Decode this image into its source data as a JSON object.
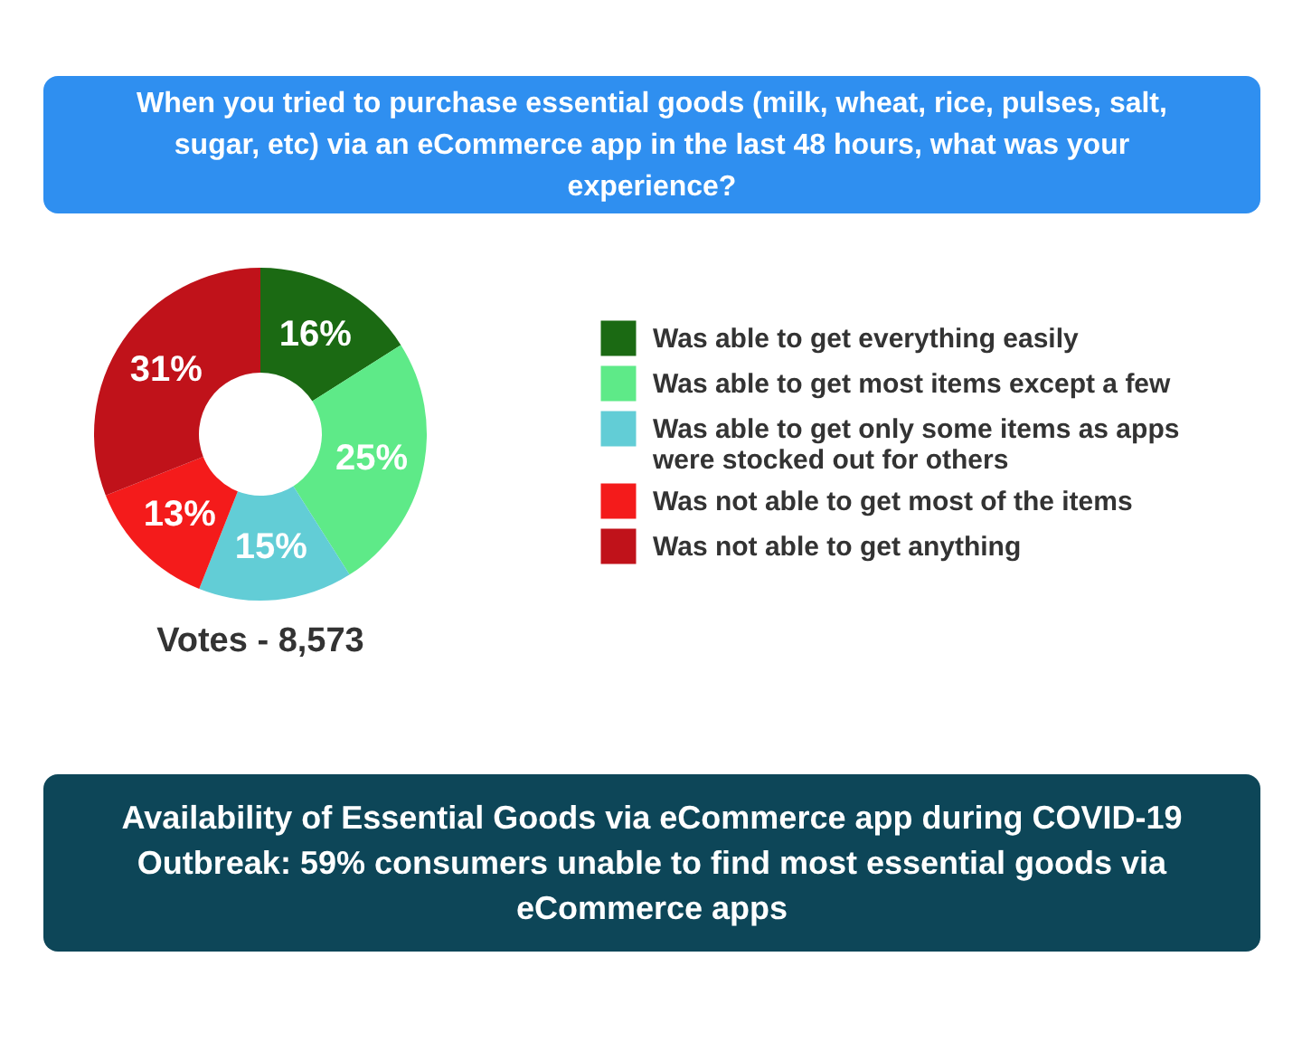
{
  "chart_data": {
    "type": "donut",
    "title": "When you tried to purchase essential goods (milk, wheat, rice, pulses, salt, sugar, etc) via an eCommerce app in the last 48 hours, what was your experience?",
    "subtitle": "Availability of Essential Goods via eCommerce app during COVID-19 Outbreak: 59% consumers unable to find most essential goods via eCommerce apps",
    "categories": [
      "Was able to get everything easily",
      "Was able to get most items except a few",
      "Was able to get only some items as apps were stocked out for others",
      "Was not able to get most of the items",
      "Was not able to get anything"
    ],
    "values": [
      16,
      25,
      15,
      13,
      31
    ],
    "value_labels": [
      "16%",
      "25%",
      "15%",
      "13%",
      "31%"
    ],
    "colors": [
      "#1b6a13",
      "#5eea88",
      "#62cdd6",
      "#f41b1b",
      "#c0121a"
    ],
    "legend": "right",
    "annotations": [
      "Votes - 8,573"
    ]
  }
}
